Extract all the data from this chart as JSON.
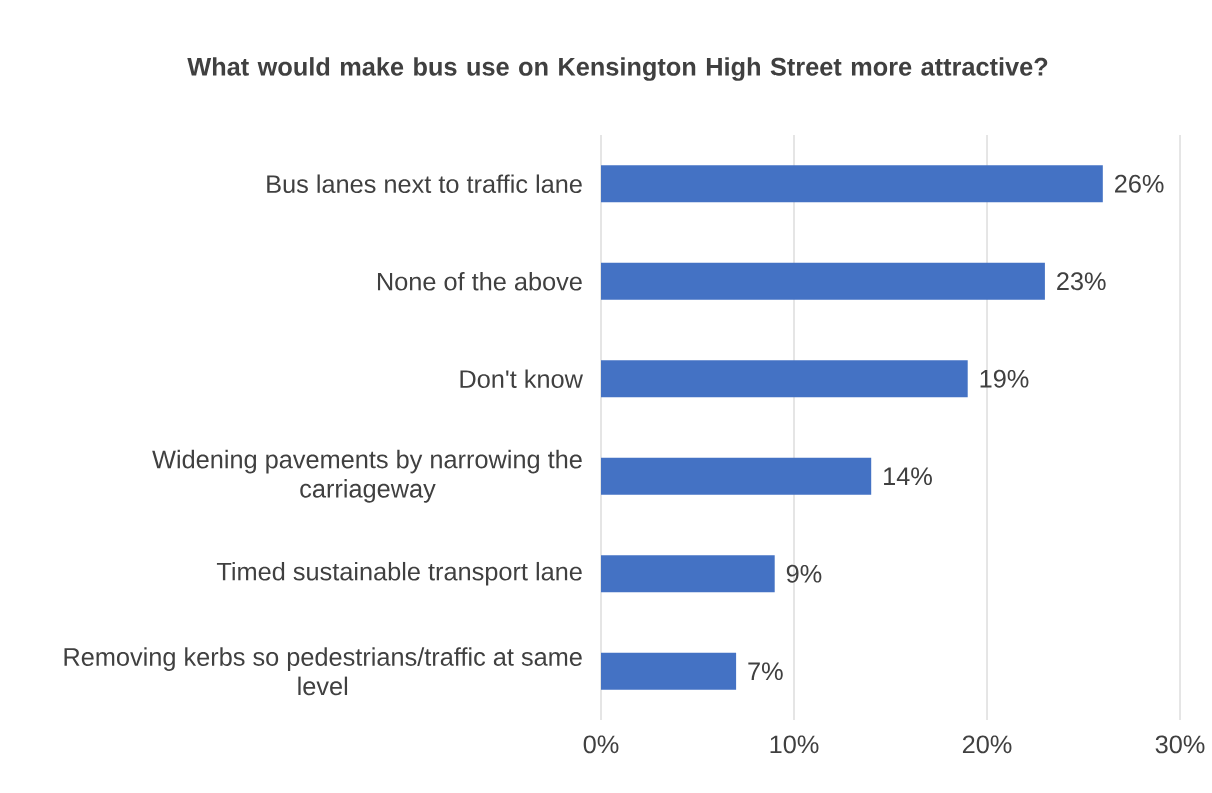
{
  "chart_data": {
    "type": "bar",
    "orientation": "horizontal",
    "title": "What would make bus use on Kensington High Street more attractive?",
    "categories": [
      "Bus lanes next to traffic lane",
      "None of the above",
      "Don't know",
      "Widening pavements by narrowing the carriageway",
      "Timed sustainable transport lane",
      "Removing kerbs so pedestrians/traffic at same level"
    ],
    "values": [
      26,
      23,
      19,
      14,
      9,
      7
    ],
    "value_labels": [
      "26%",
      "23%",
      "19%",
      "14%",
      "9%",
      "7%"
    ],
    "color": "#4472c4",
    "xlim": [
      0,
      30
    ],
    "xticks": [
      {
        "value": 0,
        "label": "0%"
      },
      {
        "value": 10,
        "label": "10%"
      },
      {
        "value": 20,
        "label": "20%"
      },
      {
        "value": 30,
        "label": "30%"
      }
    ],
    "grid": "x"
  }
}
